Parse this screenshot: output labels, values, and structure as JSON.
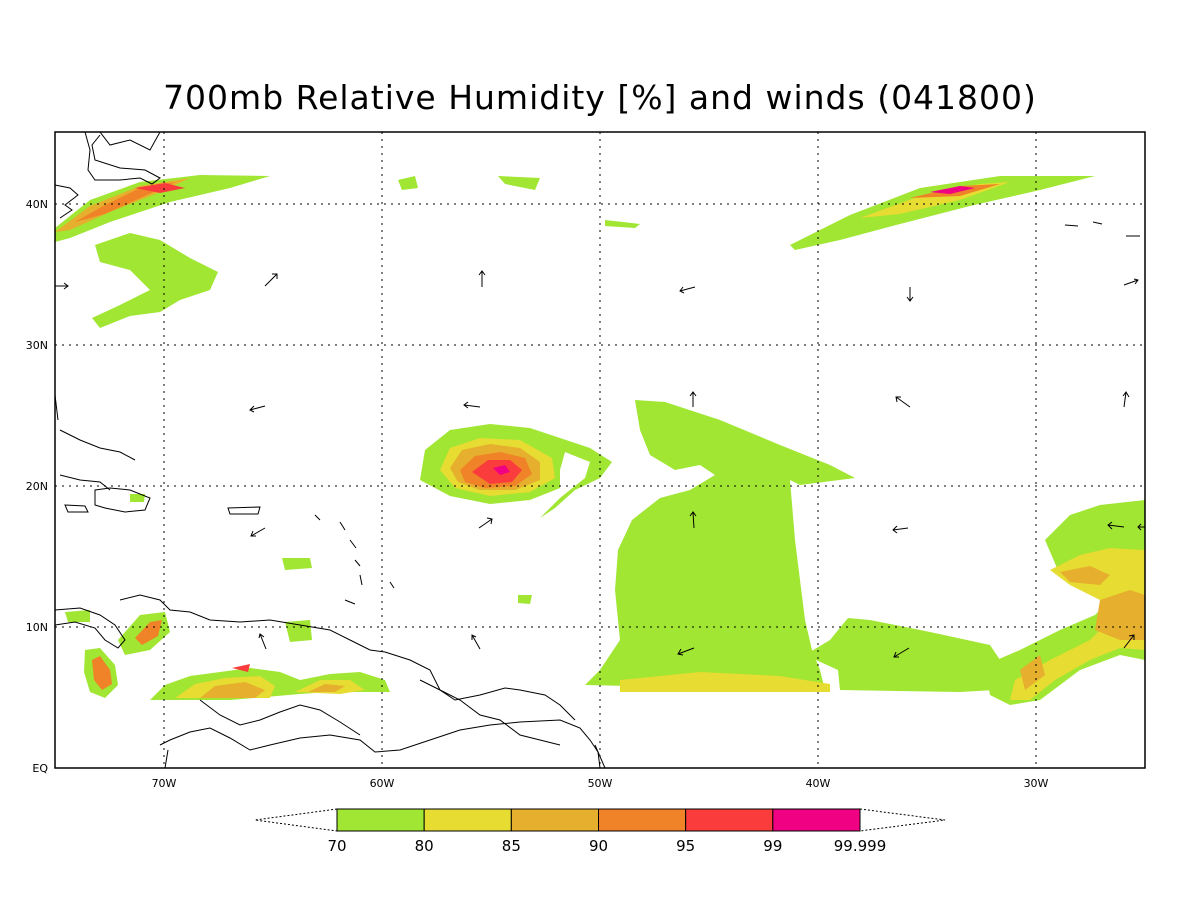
{
  "title": "700mb Relative Humidity [%] and winds (041800)",
  "axes": {
    "lat_labels": [
      "40N",
      "30N",
      "20N",
      "10N",
      "EQ"
    ],
    "lon_labels": [
      "70W",
      "60W",
      "50W",
      "40W",
      "30W"
    ]
  },
  "colorbar": {
    "bins": [
      {
        "label": "70",
        "color": "#a0e632"
      },
      {
        "label": "80",
        "color": "#e6dc32"
      },
      {
        "label": "85",
        "color": "#e6af2d"
      },
      {
        "label": "90",
        "color": "#f08228"
      },
      {
        "label": "95",
        "color": "#fa3c3c"
      },
      {
        "label": "99",
        "color": "#f00082"
      }
    ],
    "end_label": "99.999"
  },
  "colors": {
    "land_outline": "#000000",
    "grid": "#000000"
  }
}
